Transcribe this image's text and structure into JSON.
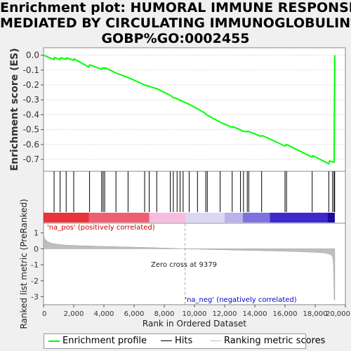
{
  "title_lines": [
    "Enrichment plot: HUMORAL IMMUNE RESPONSE",
    "MEDIATED BY CIRCULATING IMMUNOGLOBULIN%",
    "GOBP%GO:0002455"
  ],
  "colors": {
    "enrichment": "#00ff00",
    "hits": "#000000",
    "ranking": "#bebebe",
    "pos_label": "#cc0000",
    "neg_label": "#0000cc"
  },
  "chart_data": [
    {
      "type": "line",
      "name": "enrichment-profile",
      "ylabel": "Enrichment score (ES)",
      "ylim": [
        -0.78,
        0.05
      ],
      "xlim": [
        0,
        20000
      ],
      "yticks": [
        "0.0",
        "-0.1",
        "-0.2",
        "-0.3",
        "-0.4",
        "-0.5",
        "-0.6",
        "-0.7"
      ],
      "ytick_values": [
        0.0,
        -0.1,
        -0.2,
        -0.3,
        -0.4,
        -0.5,
        -0.6,
        -0.7
      ],
      "grid": true,
      "series": [
        {
          "name": "Enrichment profile",
          "x": [
            0,
            700,
            720,
            1100,
            1130,
            1500,
            1530,
            2000,
            2030,
            3000,
            3050,
            3850,
            3900,
            4050,
            4100,
            4800,
            5600,
            6700,
            7000,
            7500,
            8400,
            8600,
            8800,
            9000,
            9200,
            9650,
            10200,
            10700,
            10800,
            11700,
            12500,
            12550,
            13000,
            13100,
            13200,
            13450,
            13500,
            14400,
            14500,
            16000,
            16050,
            16100,
            17800,
            17850,
            18900,
            18950,
            19250,
            19260,
            19270,
            19280,
            19290,
            19300
          ],
          "y": [
            0.0,
            -0.03,
            -0.015,
            -0.03,
            -0.018,
            -0.028,
            -0.018,
            -0.035,
            -0.025,
            -0.08,
            -0.065,
            -0.095,
            -0.085,
            -0.09,
            -0.085,
            -0.12,
            -0.15,
            -0.2,
            -0.21,
            -0.225,
            -0.27,
            -0.285,
            -0.29,
            -0.3,
            -0.31,
            -0.33,
            -0.36,
            -0.39,
            -0.4,
            -0.45,
            -0.485,
            -0.48,
            -0.5,
            -0.505,
            -0.51,
            -0.515,
            -0.51,
            -0.545,
            -0.54,
            -0.61,
            -0.605,
            -0.6,
            -0.685,
            -0.675,
            -0.73,
            -0.71,
            -0.72,
            -0.6,
            -0.4,
            -0.25,
            -0.14,
            0.0
          ]
        }
      ]
    },
    {
      "type": "scatter",
      "name": "hits",
      "xlim": [
        0,
        20000
      ],
      "hit_positions": [
        700,
        1100,
        1500,
        2000,
        3050,
        3850,
        3950,
        4050,
        4800,
        5600,
        6700,
        7000,
        7500,
        8400,
        8600,
        8850,
        9050,
        9250,
        9650,
        10200,
        10750,
        10850,
        11700,
        12500,
        13050,
        13250,
        13500,
        13600,
        14450,
        16000,
        16100,
        17800,
        18900,
        19150,
        19250,
        19290
      ]
    },
    {
      "type": "heatmap",
      "name": "rank-colorbar",
      "xlim": [
        0,
        20000
      ],
      "bands": [
        {
          "from": 0,
          "to": 3000,
          "color": "#e8333a"
        },
        {
          "from": 3000,
          "to": 7000,
          "color": "#ef5f70"
        },
        {
          "from": 7000,
          "to": 9400,
          "color": "#f7bde0"
        },
        {
          "from": 9400,
          "to": 12000,
          "color": "#dcd8f4"
        },
        {
          "from": 12000,
          "to": 13200,
          "color": "#b9b2ec"
        },
        {
          "from": 13200,
          "to": 15000,
          "color": "#7f72e0"
        },
        {
          "from": 15000,
          "to": 18800,
          "color": "#3c2acb"
        },
        {
          "from": 18800,
          "to": 19300,
          "color": "#1a0a9c"
        }
      ]
    },
    {
      "type": "area",
      "name": "ranked-list-metric",
      "xlabel": "Rank in Ordered Dataset",
      "ylabel": "Ranked list metric (PreRanked)",
      "ylim": [
        -3.5,
        1.6
      ],
      "xlim": [
        0,
        20000
      ],
      "xticks": [
        "0",
        "2,000",
        "4,000",
        "6,000",
        "8,000",
        "10,000",
        "12,000",
        "14,000",
        "16,000",
        "18,000",
        "20,000"
      ],
      "xtick_values": [
        0,
        2000,
        4000,
        6000,
        8000,
        10000,
        12000,
        14000,
        16000,
        18000,
        20000
      ],
      "yticks": [
        "1",
        "0",
        "-1",
        "-2",
        "-3"
      ],
      "ytick_values": [
        1,
        0,
        -1,
        -2,
        -3
      ],
      "x": [
        0,
        100,
        300,
        600,
        1000,
        1500,
        2500,
        4000,
        6000,
        8000,
        9379,
        11000,
        13000,
        15000,
        17000,
        18000,
        18600,
        18900,
        19050,
        19150,
        19200,
        19230,
        19260,
        19300
      ],
      "y": [
        0.85,
        0.6,
        0.42,
        0.33,
        0.27,
        0.23,
        0.19,
        0.15,
        0.1,
        0.05,
        0.0,
        -0.04,
        -0.09,
        -0.13,
        -0.18,
        -0.22,
        -0.26,
        -0.32,
        -0.38,
        -0.5,
        -0.8,
        -1.5,
        -3.2,
        -3.2
      ],
      "zero_cross": 9379,
      "annotations": {
        "zero_cross": "Zero cross at 9379",
        "pos": "'na_pos' (positively correlated)",
        "neg": "'na_neg' (negatively correlated)"
      }
    }
  ],
  "legend": {
    "enrichment": "Enrichment profile",
    "hits": "Hits",
    "ranking": "Ranking metric scores"
  }
}
